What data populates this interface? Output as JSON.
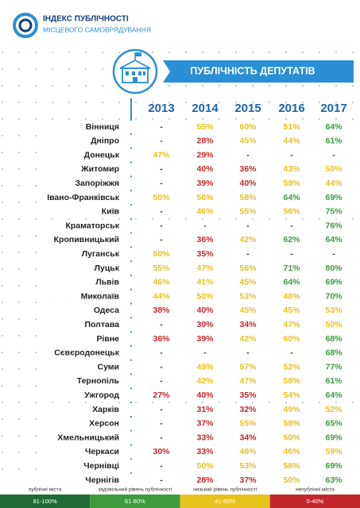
{
  "header": {
    "title": "ІНДЕКС ПУБЛІЧНОСТІ",
    "subtitle": "МІСЦЕВОГО САМОВРЯДУВАННЯ"
  },
  "banner": "ПУБЛІЧНІСТЬ ДЕПУТАТІВ",
  "table": {
    "columns": [
      "2013",
      "2014",
      "2015",
      "2016",
      "2017"
    ],
    "rows": [
      {
        "city": "Вінниця",
        "cells": [
          "-",
          "55%",
          "60%",
          "51%",
          "64%"
        ]
      },
      {
        "city": "Дніпро",
        "cells": [
          "-",
          "28%",
          "45%",
          "44%",
          "61%"
        ]
      },
      {
        "city": "Донецьк",
        "cells": [
          "47%",
          "29%",
          "-",
          "-",
          "-"
        ]
      },
      {
        "city": "Житомир",
        "cells": [
          "-",
          "40%",
          "36%",
          "43%",
          "50%"
        ]
      },
      {
        "city": "Запоріжжя",
        "cells": [
          "-",
          "39%",
          "40%",
          "59%",
          "44%"
        ]
      },
      {
        "city": "Івано-Франківськ",
        "cells": [
          "50%",
          "56%",
          "58%",
          "64%",
          "69%"
        ]
      },
      {
        "city": "Київ",
        "cells": [
          "-",
          "46%",
          "55%",
          "56%",
          "75%"
        ]
      },
      {
        "city": "Краматорськ",
        "cells": [
          "-",
          "-",
          "-",
          "-",
          "76%"
        ]
      },
      {
        "city": "Кропивницький",
        "cells": [
          "-",
          "36%",
          "42%",
          "62%",
          "64%"
        ]
      },
      {
        "city": "Луганськ",
        "cells": [
          "50%",
          "35%",
          "-",
          "-",
          "-"
        ]
      },
      {
        "city": "Луцьк",
        "cells": [
          "55%",
          "47%",
          "56%",
          "71%",
          "80%"
        ]
      },
      {
        "city": "Львів",
        "cells": [
          "46%",
          "41%",
          "45%",
          "64%",
          "69%"
        ]
      },
      {
        "city": "Миколаїв",
        "cells": [
          "44%",
          "50%",
          "53%",
          "48%",
          "70%"
        ]
      },
      {
        "city": "Одеса",
        "cells": [
          "38%",
          "40%",
          "45%",
          "45%",
          "53%"
        ]
      },
      {
        "city": "Полтава",
        "cells": [
          "-",
          "30%",
          "34%",
          "47%",
          "50%"
        ]
      },
      {
        "city": "Рівне",
        "cells": [
          "36%",
          "39%",
          "42%",
          "60%",
          "68%"
        ]
      },
      {
        "city": "Сєвєродонецьк",
        "cells": [
          "-",
          "-",
          "-",
          "-",
          "68%"
        ]
      },
      {
        "city": "Суми",
        "cells": [
          "-",
          "49%",
          "57%",
          "52%",
          "77%"
        ]
      },
      {
        "city": "Тернопіль",
        "cells": [
          "-",
          "42%",
          "47%",
          "58%",
          "61%"
        ]
      },
      {
        "city": "Ужгород",
        "cells": [
          "27%",
          "40%",
          "35%",
          "54%",
          "64%"
        ]
      },
      {
        "city": "Харків",
        "cells": [
          "-",
          "31%",
          "32%",
          "49%",
          "52%"
        ]
      },
      {
        "city": "Херсон",
        "cells": [
          "-",
          "37%",
          "55%",
          "58%",
          "65%"
        ]
      },
      {
        "city": "Хмельницький",
        "cells": [
          "-",
          "33%",
          "34%",
          "50%",
          "69%"
        ]
      },
      {
        "city": "Черкаси",
        "cells": [
          "30%",
          "33%",
          "46%",
          "46%",
          "59%"
        ]
      },
      {
        "city": "Чернівці",
        "cells": [
          "-",
          "50%",
          "53%",
          "58%",
          "69%"
        ]
      },
      {
        "city": "Чернігів",
        "cells": [
          "-",
          "28%",
          "37%",
          "50%",
          "63%"
        ]
      }
    ]
  },
  "legend": [
    {
      "label": "публічні міста",
      "range": "81-100%",
      "color": "#1f6b33"
    },
    {
      "label": "задовільний рівень публічності",
      "range": "61-80%",
      "color": "#3d9a3e"
    },
    {
      "label": "низький рівень публічності",
      "range": "41-60%",
      "color": "#e6c21d"
    },
    {
      "label": "непублічні міста",
      "range": "0-40%",
      "color": "#c1272d"
    }
  ]
}
